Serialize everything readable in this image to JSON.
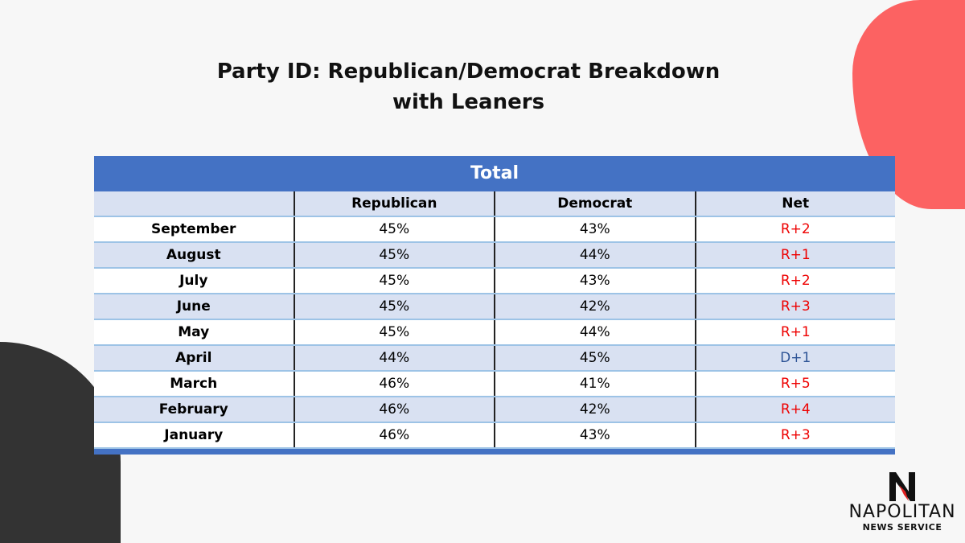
{
  "title_line1": "Party ID: Republican/Democrat Breakdown",
  "title_line2": "with Leaners",
  "table": {
    "band": "Total",
    "headers": [
      "",
      "Republican",
      "Democrat",
      "Net"
    ],
    "rows": [
      [
        "September",
        "45%",
        "43%",
        "R+2"
      ],
      [
        "August",
        "45%",
        "44%",
        "R+1"
      ],
      [
        "July",
        "45%",
        "43%",
        "R+2"
      ],
      [
        "June",
        "45%",
        "42%",
        "R+3"
      ],
      [
        "May",
        "45%",
        "44%",
        "R+1"
      ],
      [
        "April",
        "44%",
        "45%",
        "D+1"
      ],
      [
        "March",
        "46%",
        "41%",
        "R+5"
      ],
      [
        "February",
        "46%",
        "42%",
        "R+4"
      ],
      [
        "January",
        "46%",
        "43%",
        "R+3"
      ]
    ]
  },
  "logo": {
    "name": "NAPOLITAN",
    "sub": "NEWS SERVICE"
  },
  "colors": {
    "band": "#4472c4",
    "republican_net": "#ee0000",
    "democrat_net": "#2f5597",
    "accent_blob": "#fc6262"
  }
}
